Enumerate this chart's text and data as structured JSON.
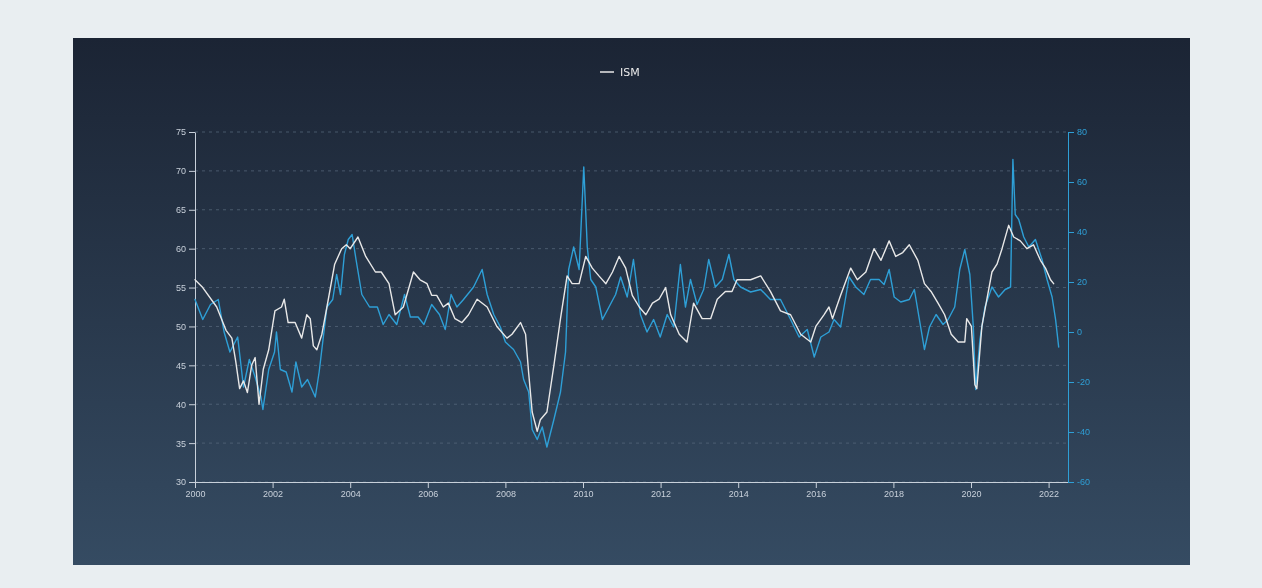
{
  "chart_data": {
    "type": "line",
    "xlim": [
      2000,
      2022.5
    ],
    "xticks": [
      2000,
      2002,
      2004,
      2006,
      2008,
      2010,
      2012,
      2014,
      2016,
      2018,
      2020,
      2022
    ],
    "ylim": [
      30,
      75
    ],
    "yticks": [
      30,
      35,
      40,
      45,
      50,
      55,
      60,
      65,
      70,
      75
    ],
    "y2lim": [
      -60,
      80
    ],
    "y2ticks": [
      -60,
      -40,
      -20,
      0,
      20,
      40,
      60,
      80
    ],
    "grid": "y",
    "legend": "top",
    "series": [
      {
        "name": "ISM",
        "color": "#e8e8e8",
        "x": [
          2000.0,
          2000.2,
          2000.56,
          2000.8,
          2000.95,
          2001.05,
          2001.15,
          2001.25,
          2001.35,
          2001.46,
          2001.55,
          2001.65,
          2001.76,
          2001.9,
          2002.06,
          2002.23,
          2002.3,
          2002.4,
          2002.58,
          2002.75,
          2002.88,
          2002.97,
          2003.05,
          2003.14,
          2003.27,
          2003.4,
          2003.6,
          2003.78,
          2003.9,
          2004.0,
          2004.2,
          2004.4,
          2004.65,
          2004.8,
          2005.0,
          2005.16,
          2005.37,
          2005.63,
          2005.8,
          2005.98,
          2006.1,
          2006.23,
          2006.4,
          2006.53,
          2006.7,
          2006.88,
          2007.05,
          2007.27,
          2007.53,
          2007.78,
          2008.04,
          2008.17,
          2008.39,
          2008.52,
          2008.6,
          2008.69,
          2008.82,
          2008.9,
          2009.07,
          2009.25,
          2009.42,
          2009.59,
          2009.72,
          2009.9,
          2010.07,
          2010.24,
          2010.41,
          2010.59,
          2010.76,
          2010.93,
          2011.1,
          2011.27,
          2011.45,
          2011.62,
          2011.79,
          2011.96,
          2012.13,
          2012.26,
          2012.48,
          2012.68,
          2012.85,
          2013.07,
          2013.29,
          2013.46,
          2013.67,
          2013.84,
          2013.97,
          2014.1,
          2014.32,
          2014.58,
          2014.83,
          2015.09,
          2015.35,
          2015.61,
          2015.87,
          2016.0,
          2016.21,
          2016.34,
          2016.43,
          2016.64,
          2016.9,
          2017.07,
          2017.29,
          2017.5,
          2017.68,
          2017.89,
          2018.06,
          2018.24,
          2018.41,
          2018.63,
          2018.8,
          2018.97,
          2019.15,
          2019.32,
          2019.49,
          2019.67,
          2019.84,
          2019.89,
          2020.01,
          2020.1,
          2020.15,
          2020.28,
          2020.41,
          2020.54,
          2020.67,
          2020.8,
          2020.97,
          2021.1,
          2021.27,
          2021.44,
          2021.61,
          2021.79,
          2021.92,
          2022.05,
          2022.13
        ],
        "values": [
          56,
          55,
          52.5,
          49.5,
          48.5,
          45.5,
          42,
          43,
          41.5,
          45,
          46,
          40,
          44.5,
          47,
          52,
          52.5,
          53.5,
          50.5,
          50.5,
          48.5,
          51.5,
          51,
          47.5,
          47,
          49,
          52.5,
          58,
          60,
          60.5,
          60,
          61.5,
          59,
          57,
          57,
          55.5,
          51.5,
          52.5,
          57,
          56,
          55.5,
          54,
          54,
          52.5,
          53,
          51,
          50.5,
          51.5,
          53.5,
          52.5,
          50,
          48.5,
          49,
          50.5,
          49,
          44,
          39,
          36.5,
          38,
          39,
          45,
          51,
          56.5,
          55.5,
          55.5,
          59,
          57.5,
          56.5,
          55.5,
          57,
          59,
          57.5,
          54,
          52.5,
          51.5,
          53,
          53.5,
          55,
          51.5,
          49,
          48,
          53,
          51,
          51,
          53.5,
          54.5,
          54.5,
          56,
          56,
          56,
          56.5,
          54.5,
          52,
          51.5,
          49,
          48,
          50,
          51.5,
          52.5,
          51,
          54,
          57.5,
          56,
          57,
          60,
          58.5,
          61,
          59,
          59.5,
          60.5,
          58.5,
          55.5,
          54.5,
          53,
          51.5,
          49,
          48,
          48,
          51,
          50,
          42.5,
          42,
          50,
          53.5,
          57,
          58,
          60,
          63,
          61.5,
          61,
          60,
          60.5,
          58.5,
          57.5,
          56,
          55.5
        ]
      },
      {
        "color": "#2e9fd6",
        "axis": "y2",
        "x": [
          2000.0,
          2000.2,
          2000.4,
          2000.6,
          2000.75,
          2000.9,
          2001.1,
          2001.25,
          2001.4,
          2001.55,
          2001.7,
          2001.75,
          2001.9,
          2002.05,
          2002.1,
          2002.2,
          2002.35,
          2002.5,
          2002.6,
          2002.75,
          2002.9,
          2003.1,
          2003.2,
          2003.4,
          2003.55,
          2003.65,
          2003.75,
          2003.85,
          2003.95,
          2004.05,
          2004.15,
          2004.3,
          2004.5,
          2004.7,
          2004.85,
          2005.0,
          2005.2,
          2005.4,
          2005.55,
          2005.75,
          2005.9,
          2006.1,
          2006.3,
          2006.45,
          2006.6,
          2006.75,
          2006.92,
          2007.18,
          2007.4,
          2007.53,
          2007.7,
          2007.87,
          2008.0,
          2008.21,
          2008.39,
          2008.47,
          2008.6,
          2008.69,
          2008.82,
          2008.95,
          2009.07,
          2009.25,
          2009.42,
          2009.55,
          2009.63,
          2009.76,
          2009.9,
          2010.02,
          2010.11,
          2010.2,
          2010.33,
          2010.5,
          2010.67,
          2010.84,
          2010.97,
          2011.14,
          2011.3,
          2011.48,
          2011.65,
          2011.82,
          2011.99,
          2012.17,
          2012.34,
          2012.51,
          2012.64,
          2012.77,
          2012.94,
          2013.11,
          2013.24,
          2013.41,
          2013.59,
          2013.76,
          2013.89,
          2014.06,
          2014.32,
          2014.58,
          2014.83,
          2015.09,
          2015.35,
          2015.57,
          2015.78,
          2015.96,
          2016.13,
          2016.34,
          2016.47,
          2016.64,
          2016.86,
          2017.03,
          2017.24,
          2017.41,
          2017.63,
          2017.76,
          2017.89,
          2018.02,
          2018.19,
          2018.41,
          2018.54,
          2018.67,
          2018.8,
          2018.93,
          2019.1,
          2019.28,
          2019.41,
          2019.58,
          2019.71,
          2019.84,
          2019.97,
          2020.06,
          2020.12,
          2020.23,
          2020.36,
          2020.54,
          2020.71,
          2020.88,
          2021.02,
          2021.08,
          2021.14,
          2021.23,
          2021.36,
          2021.49,
          2021.66,
          2021.83,
          2021.96,
          2022.09,
          2022.18,
          2022.26
        ],
        "values": [
          13,
          5,
          11,
          13,
          0,
          -8,
          -2,
          -22,
          -11,
          -18,
          -26,
          -31,
          -15,
          -8,
          0,
          -15,
          -16,
          -24,
          -12,
          -22,
          -19,
          -26,
          -16,
          10,
          13,
          23,
          15,
          31,
          37,
          39,
          29,
          15,
          10,
          10,
          3,
          7,
          3,
          15,
          6,
          6,
          3,
          11,
          7,
          1,
          15,
          10,
          13,
          18,
          25,
          15,
          7,
          2,
          -4,
          -7,
          -12,
          -19,
          -24,
          -39,
          -43,
          -38,
          -46,
          -35,
          -24,
          -8,
          25,
          34,
          25,
          66,
          34,
          21,
          18,
          5,
          10,
          15,
          22,
          14,
          29,
          7,
          0,
          5,
          -2,
          7,
          2,
          27,
          10,
          21,
          11,
          17,
          29,
          18,
          21,
          31,
          21,
          18,
          16,
          17,
          13,
          13,
          5,
          -2,
          1,
          -10,
          -2,
          0,
          5,
          2,
          22,
          18,
          15,
          21,
          21,
          19,
          25,
          14,
          12,
          13,
          17,
          5,
          -7,
          2,
          7,
          3,
          5,
          10,
          25,
          33,
          23,
          2,
          -23,
          -3,
          10,
          18,
          14,
          17,
          18,
          69,
          47,
          45,
          38,
          34,
          37,
          29,
          21,
          14,
          5,
          -6
        ]
      }
    ]
  }
}
